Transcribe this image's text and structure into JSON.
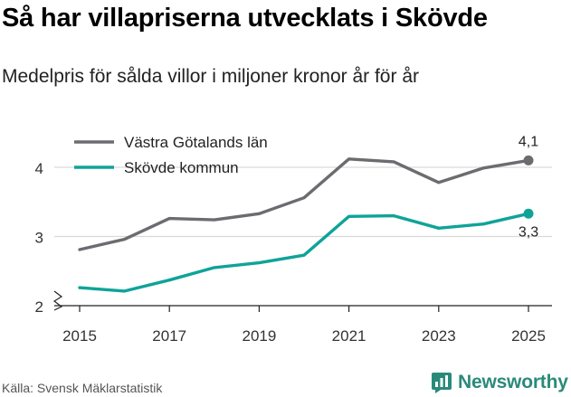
{
  "header": {
    "title": "Så har villapriserna utvecklats i Skövde",
    "subtitle": "Medelpris för sålda villor i miljoner kronor år för år"
  },
  "footer": {
    "source": "Källa: Svensk Mäklarstatistik",
    "brand": "Newsworthy",
    "brand_icon": "newsworthy-logo-icon"
  },
  "colors": {
    "vg": "#6d6b70",
    "skovde": "#0fa398",
    "grid": "#d9d9d9",
    "axis": "#222222",
    "brand": "#2a8a7a"
  },
  "chart_data": {
    "type": "line",
    "x": [
      2015,
      2016,
      2017,
      2018,
      2019,
      2020,
      2021,
      2022,
      2023,
      2024,
      2025
    ],
    "xticks": [
      2015,
      2017,
      2019,
      2021,
      2023,
      2025
    ],
    "yticks": [
      2,
      3,
      4
    ],
    "ylim": [
      2,
      4.4
    ],
    "y_axis_break": true,
    "grid": "horizontal",
    "legend_position": "top-left",
    "series": [
      {
        "name": "Västra Götalands län",
        "color": "#6d6b70",
        "values": [
          2.81,
          2.96,
          3.26,
          3.24,
          3.33,
          3.56,
          4.12,
          4.08,
          3.78,
          3.99,
          4.1
        ],
        "end_label": "4,1"
      },
      {
        "name": "Skövde kommun",
        "color": "#0fa398",
        "values": [
          2.26,
          2.21,
          2.37,
          2.55,
          2.62,
          2.73,
          3.29,
          3.3,
          3.12,
          3.18,
          3.33
        ],
        "end_label": "3,3"
      }
    ]
  }
}
